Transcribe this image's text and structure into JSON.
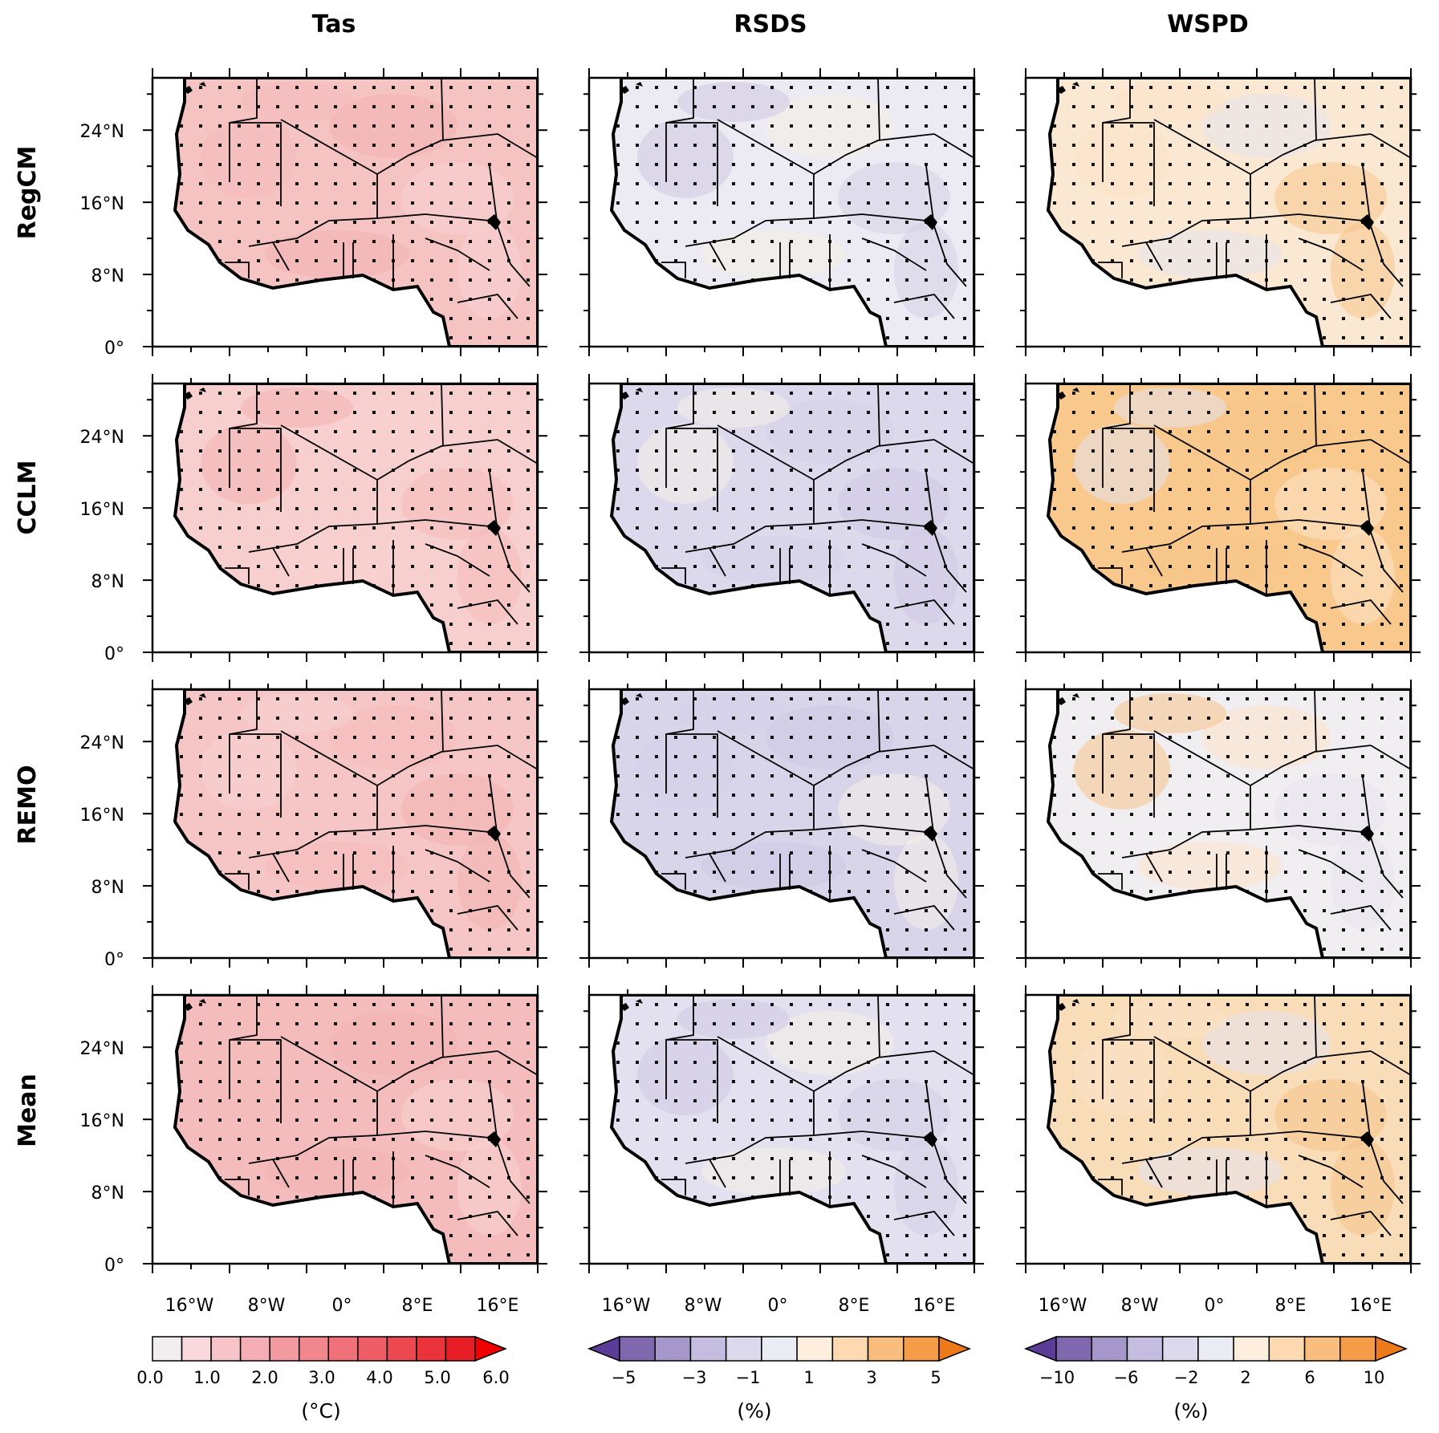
{
  "figure": {
    "columns": [
      "Tas",
      "RSDS",
      "WSPD"
    ],
    "rows": [
      "RegCM",
      "CCLM",
      "REMO",
      "Mean"
    ],
    "lat_ticks": [
      "24°N",
      "16°N",
      "8°N",
      "0°"
    ],
    "lon_ticks": [
      "16°W",
      "8°W",
      "0°",
      "8°E",
      "16°E"
    ]
  },
  "colorbars": [
    {
      "name": "tas",
      "unit": "(°C)",
      "labels": [
        "0.0",
        "1.0",
        "2.0",
        "3.0",
        "4.0",
        "5.0",
        "6.0"
      ],
      "colors": [
        "#f2eef0",
        "#f9d9dd",
        "#f7c4c9",
        "#f5aeb5",
        "#f39aa1",
        "#f1868d",
        "#f07179",
        "#ee5d65",
        "#ec4850",
        "#ea333b",
        "#e81e27",
        "#f20000"
      ],
      "extend": "right"
    },
    {
      "name": "rsds",
      "unit": "(%)",
      "labels": [
        "−5",
        "−3",
        "−1",
        "1",
        "3",
        "5"
      ],
      "colors": [
        "#5b3c97",
        "#7f68ad",
        "#a597c9",
        "#c5bde0",
        "#dcd9ed",
        "#eaebf4",
        "#fdeede",
        "#fcd9b1",
        "#f9bd7d",
        "#f59c48",
        "#ec7a1a"
      ],
      "extend": "both"
    },
    {
      "name": "wspd",
      "unit": "(%)",
      "labels": [
        "−10",
        "−6",
        "−2",
        "2",
        "6",
        "10"
      ],
      "colors": [
        "#5b3c97",
        "#7f68ad",
        "#a597c9",
        "#c5bde0",
        "#dcd9ed",
        "#eaebf4",
        "#fdeede",
        "#fcd9b1",
        "#f9bd7d",
        "#f59c48",
        "#ec7a1a"
      ],
      "extend": "both"
    }
  ],
  "panel_fills": {
    "tas": [
      "#f6c3c3",
      "#f8cfcf",
      "#f6c6c6",
      "#f4bcbc"
    ],
    "rsds": [
      "#eceaf2",
      "#dcd9ec",
      "#d8d4ea",
      "#e3e1ef"
    ],
    "wspd": [
      "#fbe8d3",
      "#f8c88d",
      "#f1eef1",
      "#f9dcb8"
    ]
  }
}
